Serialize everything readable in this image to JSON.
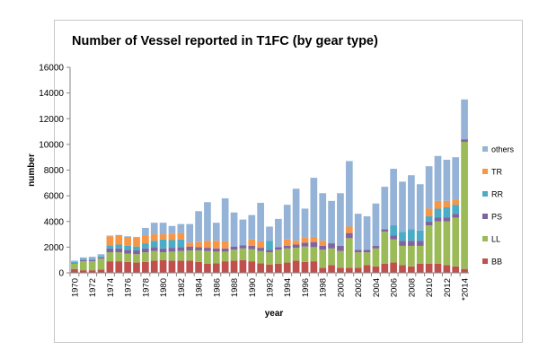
{
  "chart_data": {
    "type": "bar",
    "stacked": true,
    "title": "Number of Vessel reported in T1FC (by gear type)",
    "xlabel": "year",
    "ylabel": "number",
    "ylim": [
      0,
      16000
    ],
    "yticks": [
      0,
      2000,
      4000,
      6000,
      8000,
      10000,
      12000,
      14000,
      16000
    ],
    "grid": false,
    "legend_position": "right",
    "categories": [
      "1970",
      "1971",
      "1972",
      "1973",
      "1974",
      "1975",
      "1976",
      "1977",
      "1978",
      "1979",
      "1980",
      "1981",
      "1982",
      "1983",
      "1984",
      "1985",
      "1986",
      "1987",
      "1988",
      "1989",
      "1990",
      "1991",
      "1992",
      "1993",
      "1994",
      "1995",
      "1996",
      "1997",
      "1998",
      "1999",
      "2000",
      "2001",
      "2002",
      "2003",
      "2004",
      "2005",
      "2006",
      "2007",
      "2008",
      "2009",
      "2010",
      "2011",
      "2012",
      "2013",
      "*2014"
    ],
    "tick_labels": [
      "1970",
      "1972",
      "1974",
      "1976",
      "1978",
      "1980",
      "1982",
      "1984",
      "1986",
      "1988",
      "1990",
      "1992",
      "1994",
      "1996",
      "1998",
      "2000",
      "2002",
      "2004",
      "2006",
      "2008",
      "2010",
      "2012",
      "*2014"
    ],
    "series": [
      {
        "name": "BB",
        "color": "#c0504d",
        "values": [
          300,
          200,
          200,
          250,
          900,
          900,
          850,
          800,
          850,
          950,
          1000,
          950,
          950,
          950,
          850,
          700,
          750,
          900,
          950,
          1000,
          900,
          750,
          650,
          700,
          800,
          950,
          850,
          900,
          400,
          600,
          400,
          400,
          400,
          600,
          500,
          700,
          800,
          600,
          500,
          700,
          700,
          700,
          600,
          500,
          300
        ]
      },
      {
        "name": "LL",
        "color": "#9bbb59",
        "values": [
          400,
          700,
          700,
          850,
          700,
          700,
          650,
          650,
          750,
          750,
          600,
          700,
          750,
          800,
          900,
          1000,
          900,
          750,
          850,
          900,
          950,
          950,
          950,
          1100,
          1100,
          1000,
          1200,
          1100,
          1400,
          1300,
          1300,
          2300,
          1200,
          1000,
          1400,
          2500,
          1800,
          1500,
          1600,
          1400,
          3000,
          3300,
          3400,
          3800,
          9900
        ]
      },
      {
        "name": "PS",
        "color": "#8064a2",
        "values": [
          50,
          100,
          100,
          100,
          300,
          300,
          300,
          300,
          300,
          300,
          300,
          300,
          300,
          300,
          250,
          250,
          250,
          250,
          250,
          250,
          250,
          250,
          200,
          200,
          200,
          250,
          300,
          400,
          300,
          400,
          400,
          400,
          200,
          200,
          200,
          200,
          300,
          400,
          400,
          400,
          300,
          300,
          300,
          300,
          200
        ]
      },
      {
        "name": "RR",
        "color": "#4bacc6",
        "values": [
          100,
          100,
          100,
          100,
          250,
          300,
          300,
          300,
          400,
          500,
          700,
          600,
          600,
          0,
          0,
          0,
          0,
          0,
          0,
          0,
          0,
          0,
          700,
          0,
          0,
          0,
          0,
          0,
          0,
          0,
          0,
          0,
          0,
          0,
          0,
          0,
          800,
          700,
          900,
          800,
          400,
          700,
          800,
          700,
          0
        ]
      },
      {
        "name": "TR",
        "color": "#f79646",
        "values": [
          0,
          0,
          0,
          0,
          700,
          700,
          700,
          700,
          600,
          500,
          400,
          500,
          500,
          300,
          400,
          550,
          600,
          550,
          0,
          0,
          500,
          500,
          0,
          0,
          500,
          300,
          400,
          400,
          400,
          0,
          0,
          500,
          0,
          0,
          0,
          0,
          0,
          0,
          0,
          0,
          600,
          600,
          500,
          400,
          0
        ]
      },
      {
        "name": "others",
        "color": "#95b3d7",
        "values": [
          100,
          100,
          150,
          150,
          50,
          50,
          50,
          50,
          600,
          900,
          900,
          600,
          700,
          1450,
          2400,
          3000,
          1400,
          3350,
          2650,
          2000,
          1900,
          3000,
          1100,
          2200,
          2700,
          4050,
          2250,
          4600,
          3700,
          3300,
          4100,
          5100,
          2800,
          2600,
          3300,
          3300,
          4400,
          3900,
          4200,
          3600,
          3300,
          3500,
          3200,
          3300,
          3100
        ]
      }
    ]
  }
}
